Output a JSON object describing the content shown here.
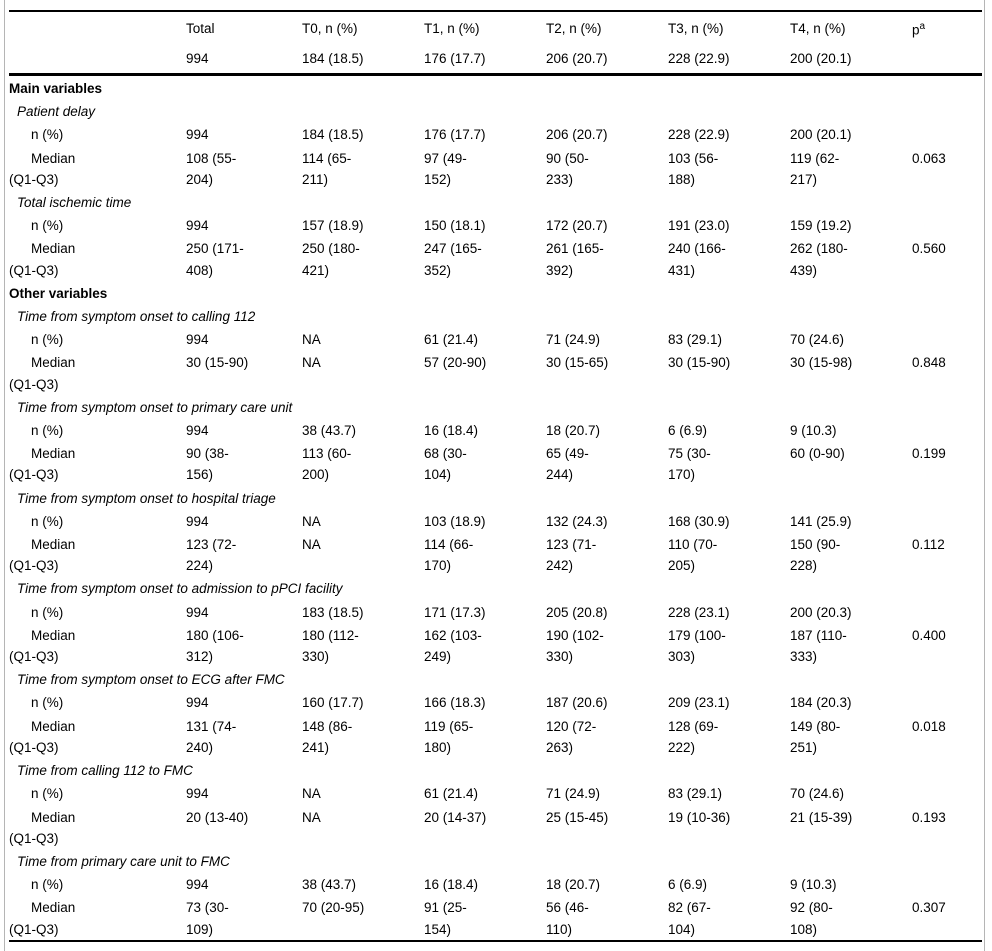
{
  "colors": {
    "rule_color": "#000000",
    "frame_color": "#b5b5b5",
    "background": "#ffffff",
    "text": "#000000"
  },
  "table": {
    "header": {
      "columns": [
        "",
        "Total",
        "T0, n (%)",
        "T1, n (%)",
        "T2, n (%)",
        "T3, n (%)",
        "T4, n (%)"
      ],
      "p_label": "p",
      "p_superscript": "a",
      "counts": [
        "994",
        "184 (18.5)",
        "176 (17.7)",
        "206 (20.7)",
        "228 (22.9)",
        "200 (20.1)"
      ]
    },
    "rows": [
      {
        "type": "section",
        "label": "Main variables"
      },
      {
        "type": "variable",
        "label": "Patient delay"
      },
      {
        "type": "data",
        "label": "n (%)",
        "cells": [
          "994",
          "184 (18.5)",
          "176 (17.7)",
          "206 (20.7)",
          "228 (22.9)",
          "200 (20.1)"
        ],
        "p": ""
      },
      {
        "type": "data",
        "label": "Median\n(Q1-Q3)",
        "cells": [
          "108 (55-\n204)",
          "114 (65-\n211)",
          "97 (49-\n152)",
          "90 (50-\n233)",
          "103 (56-\n188)",
          "119 (62-\n217)"
        ],
        "p": "0.063"
      },
      {
        "type": "variable",
        "label": "Total ischemic time"
      },
      {
        "type": "data",
        "label": "n (%)",
        "cells": [
          "994",
          "157 (18.9)",
          "150 (18.1)",
          "172 (20.7)",
          "191 (23.0)",
          "159 (19.2)"
        ],
        "p": ""
      },
      {
        "type": "data",
        "label": "Median\n(Q1-Q3)",
        "cells": [
          "250 (171-\n408)",
          "250 (180-\n421)",
          "247 (165-\n352)",
          "261 (165-\n392)",
          "240 (166-\n431)",
          "262 (180-\n439)"
        ],
        "p": "0.560"
      },
      {
        "type": "section",
        "label": "Other variables"
      },
      {
        "type": "variable",
        "label": "Time from symptom onset to calling 112"
      },
      {
        "type": "data",
        "label": "n (%)",
        "cells": [
          "994",
          "NA",
          "61 (21.4)",
          "71 (24.9)",
          "83 (29.1)",
          "70 (24.6)"
        ],
        "p": ""
      },
      {
        "type": "data",
        "label": "Median\n(Q1-Q3)",
        "cells": [
          "30 (15-90)",
          "NA",
          "57 (20-90)",
          "30 (15-65)",
          "30 (15-90)",
          "30 (15-98)"
        ],
        "p": "0.848"
      },
      {
        "type": "variable",
        "label": "Time from symptom onset to primary care unit"
      },
      {
        "type": "data",
        "label": "n (%)",
        "cells": [
          "994",
          "38 (43.7)",
          "16 (18.4)",
          "18 (20.7)",
          "6 (6.9)",
          "9 (10.3)"
        ],
        "p": ""
      },
      {
        "type": "data",
        "label": "Median\n(Q1-Q3)",
        "cells": [
          "90 (38-\n156)",
          "113 (60-\n200)",
          "68 (30-\n104)",
          "65 (49-\n244)",
          "75 (30-\n170)",
          "60 (0-90)"
        ],
        "p": "0.199"
      },
      {
        "type": "variable",
        "label": "Time from symptom onset to hospital triage"
      },
      {
        "type": "data",
        "label": "n (%)",
        "cells": [
          "994",
          "NA",
          "103 (18.9)",
          "132 (24.3)",
          "168 (30.9)",
          "141 (25.9)"
        ],
        "p": ""
      },
      {
        "type": "data",
        "label": "Median\n(Q1-Q3)",
        "cells": [
          "123 (72-\n224)",
          "NA",
          "114 (66-\n170)",
          "123 (71-\n242)",
          "110 (70-\n205)",
          "150 (90-\n228)"
        ],
        "p": "0.112"
      },
      {
        "type": "variable",
        "label": "Time from symptom onset to admission to pPCI facility"
      },
      {
        "type": "data",
        "label": "n (%)",
        "cells": [
          "994",
          "183 (18.5)",
          "171 (17.3)",
          "205 (20.8)",
          "228 (23.1)",
          "200 (20.3)"
        ],
        "p": ""
      },
      {
        "type": "data",
        "label": "Median\n(Q1-Q3)",
        "cells": [
          "180 (106-\n312)",
          "180 (112-\n330)",
          "162 (103-\n249)",
          "190 (102-\n330)",
          "179 (100-\n303)",
          "187 (110-\n333)"
        ],
        "p": "0.400"
      },
      {
        "type": "variable",
        "label": "Time from symptom onset to ECG after FMC"
      },
      {
        "type": "data",
        "label": "n (%)",
        "cells": [
          "994",
          "160 (17.7)",
          "166 (18.3)",
          "187 (20.6)",
          "209 (23.1)",
          "184 (20.3)"
        ],
        "p": ""
      },
      {
        "type": "data",
        "label": "Median\n(Q1-Q3)",
        "cells": [
          "131 (74-\n240)",
          "148 (86-\n241)",
          "119 (65-\n180)",
          "120 (72-\n263)",
          "128 (69-\n222)",
          "149 (80-\n251)"
        ],
        "p": "0.018"
      },
      {
        "type": "variable",
        "label": "Time from calling 112 to FMC"
      },
      {
        "type": "data",
        "label": "n (%)",
        "cells": [
          "994",
          "NA",
          "61 (21.4)",
          "71 (24.9)",
          "83 (29.1)",
          "70 (24.6)"
        ],
        "p": ""
      },
      {
        "type": "data",
        "label": "Median\n(Q1-Q3)",
        "cells": [
          "20 (13-40)",
          "NA",
          "20 (14-37)",
          "25 (15-45)",
          "19 (10-36)",
          "21 (15-39)"
        ],
        "p": "0.193"
      },
      {
        "type": "variable",
        "label": "Time from primary care unit to FMC"
      },
      {
        "type": "data",
        "label": "n (%)",
        "cells": [
          "994",
          "38 (43.7)",
          "16 (18.4)",
          "18 (20.7)",
          "6 (6.9)",
          "9 (10.3)"
        ],
        "p": ""
      },
      {
        "type": "data",
        "label": "Median\n(Q1-Q3)",
        "cells": [
          "73 (30-\n109)",
          "70 (20-95)",
          "91 (25-\n154)",
          "56 (46-\n110)",
          "82 (67-\n104)",
          "92 (80-\n108)"
        ],
        "p": "0.307"
      }
    ]
  }
}
